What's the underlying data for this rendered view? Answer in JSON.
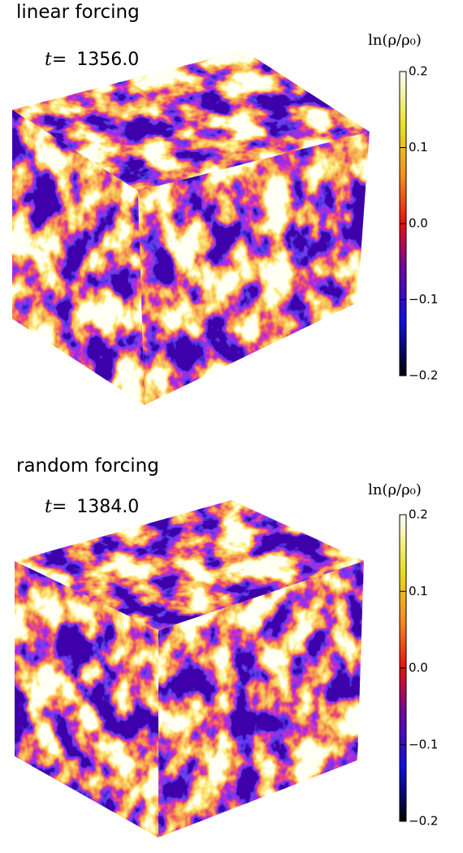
{
  "panels": [
    {
      "title": "linear forcing",
      "time_prefix": "t=",
      "time": "1356.0",
      "colorbar": {
        "label": "ln(ρ/ρ₀)",
        "lim": [
          -0.2,
          0.2
        ],
        "ticks": [
          0.2,
          0.1,
          {
            "value": 0,
            "label": "0.0"
          },
          {
            "value": -0.1,
            "label": "−0.1"
          },
          {
            "value": -0.2,
            "label": "−0.2"
          }
        ]
      }
    },
    {
      "title": "random forcing",
      "time_prefix": "t=",
      "time": "1384.0",
      "colorbar": {
        "label": "ln(ρ/ρ₀)",
        "lim": [
          -0.2,
          0.2
        ],
        "ticks": [
          0.2,
          0.1,
          {
            "value": 0,
            "label": "0.0"
          },
          {
            "value": -0.1,
            "label": "−0.1"
          },
          {
            "value": -0.2,
            "label": "−0.2"
          }
        ]
      }
    }
  ]
}
